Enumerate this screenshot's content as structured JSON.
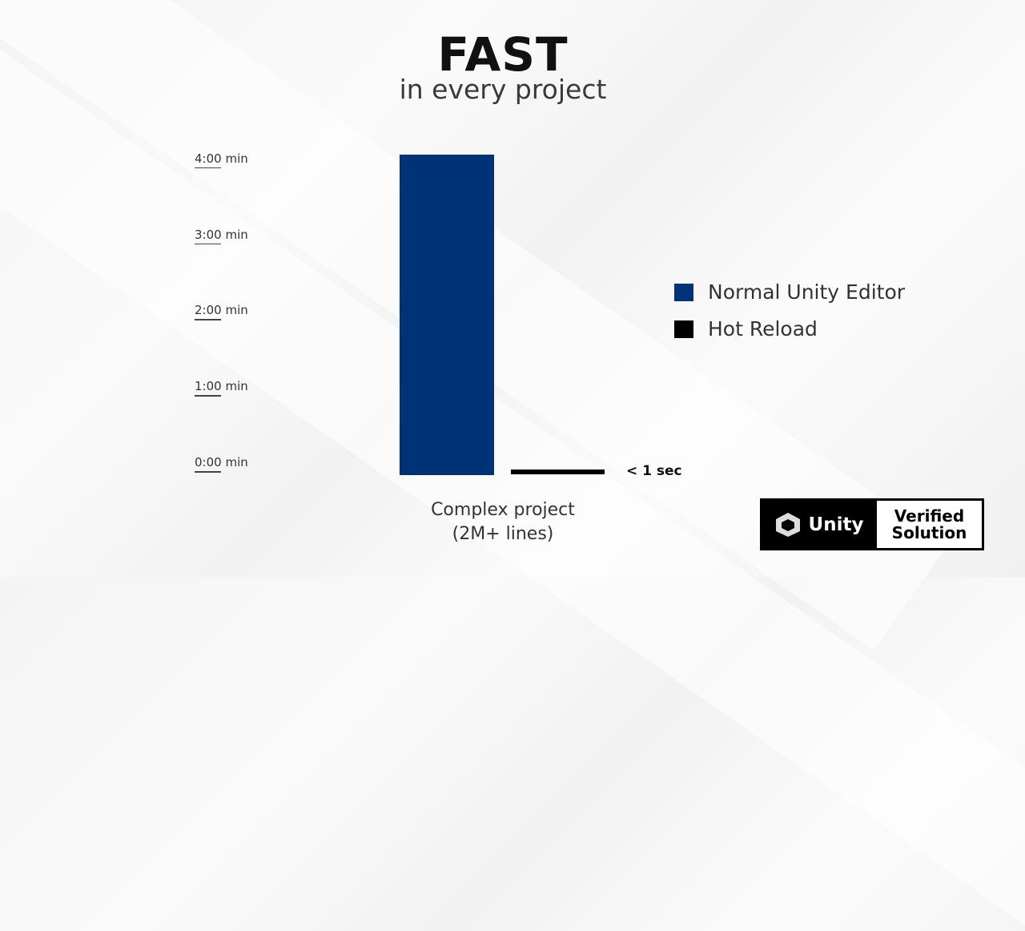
{
  "chart_data": {
    "type": "bar",
    "title": "FAST",
    "subtitle": "in every project",
    "categories": [
      "Complex project\n(2M+ lines)"
    ],
    "category_lines": [
      "Complex project",
      "(2M+ lines)"
    ],
    "y_ticks": [
      "0:00 min",
      "1:00 min",
      "2:00 min",
      "3:00 min",
      "4:00 min"
    ],
    "ylim_minutes": [
      0,
      4
    ],
    "grid": false,
    "legend_position": "right",
    "series": [
      {
        "name": "Normal Unity Editor",
        "values_minutes": [
          4.0
        ],
        "color": "#003278"
      },
      {
        "name": "Hot Reload",
        "values_minutes": [
          0.01
        ],
        "color": "#000000",
        "data_label": "< 1 sec"
      }
    ]
  },
  "badge": {
    "brand": "Unity",
    "text_line1": "Verified",
    "text_line2": "Solution"
  }
}
